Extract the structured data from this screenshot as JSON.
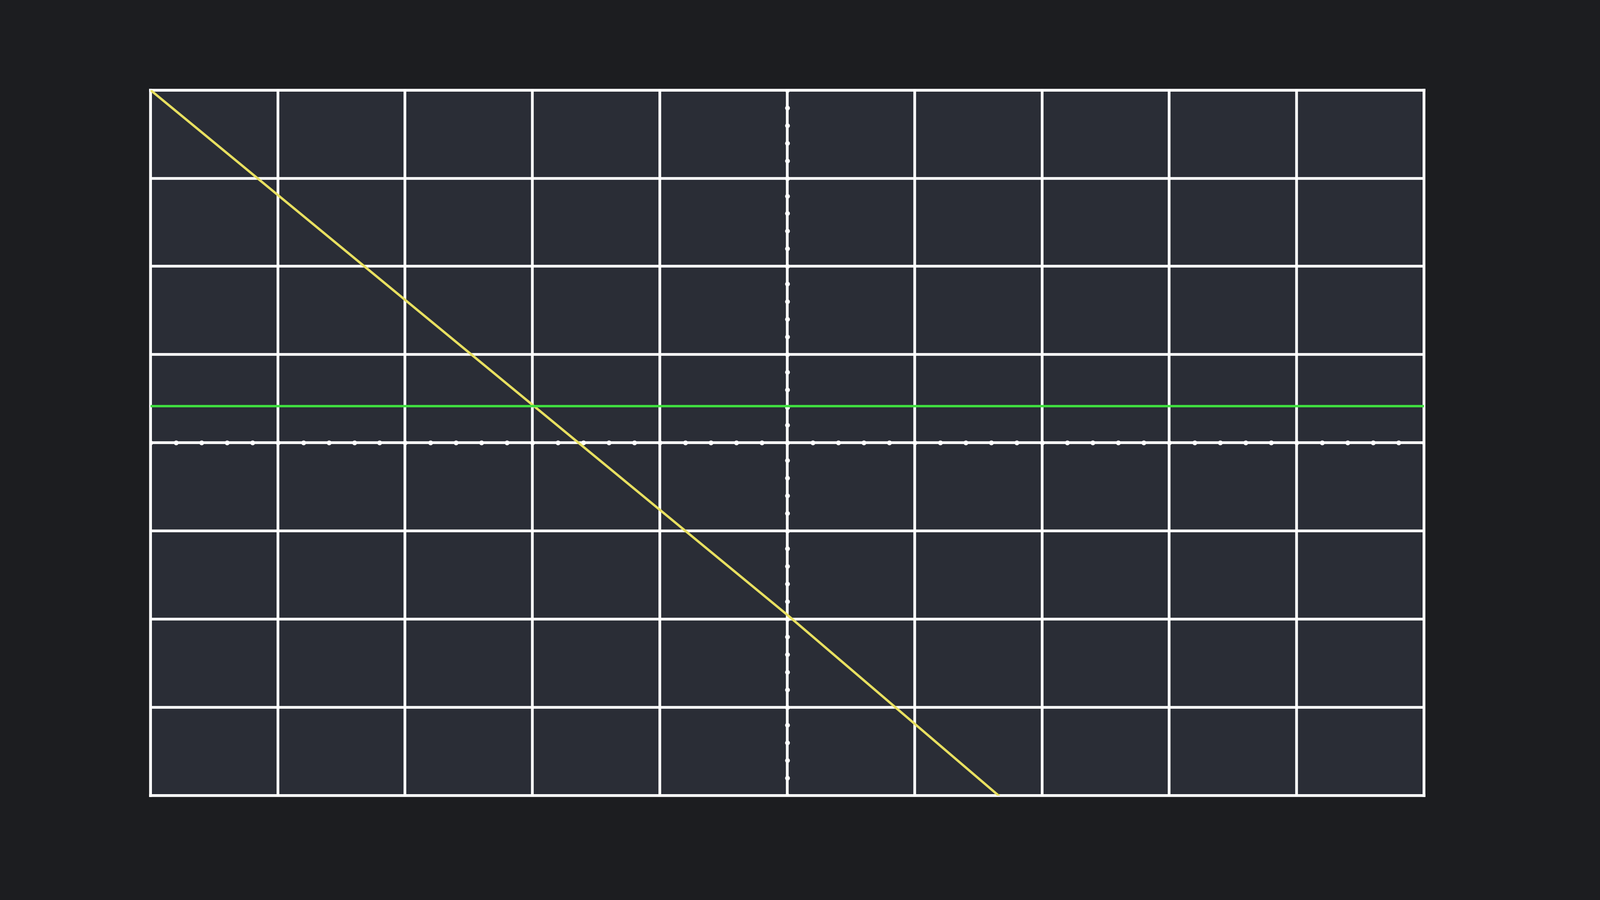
{
  "chart_data": {
    "type": "line",
    "series": [
      {
        "color": "#e8e060",
        "x": [
          -5,
          0,
          1.66
        ],
        "values": [
          4,
          -1.95,
          -4
        ]
      },
      {
        "color": "#40e040",
        "x": [
          -5,
          5
        ],
        "values": [
          0.42,
          0.42
        ]
      }
    ],
    "xlim": [
      -5,
      5
    ],
    "ylim": [
      -4,
      4
    ],
    "xticks": [
      -5,
      -4,
      -3,
      -2,
      -1,
      0,
      1,
      2,
      3,
      4,
      5
    ],
    "yticks": [
      -4,
      -3,
      -2,
      -1,
      0,
      1,
      2,
      3,
      4
    ],
    "grid": true,
    "tick_labels": false
  }
}
